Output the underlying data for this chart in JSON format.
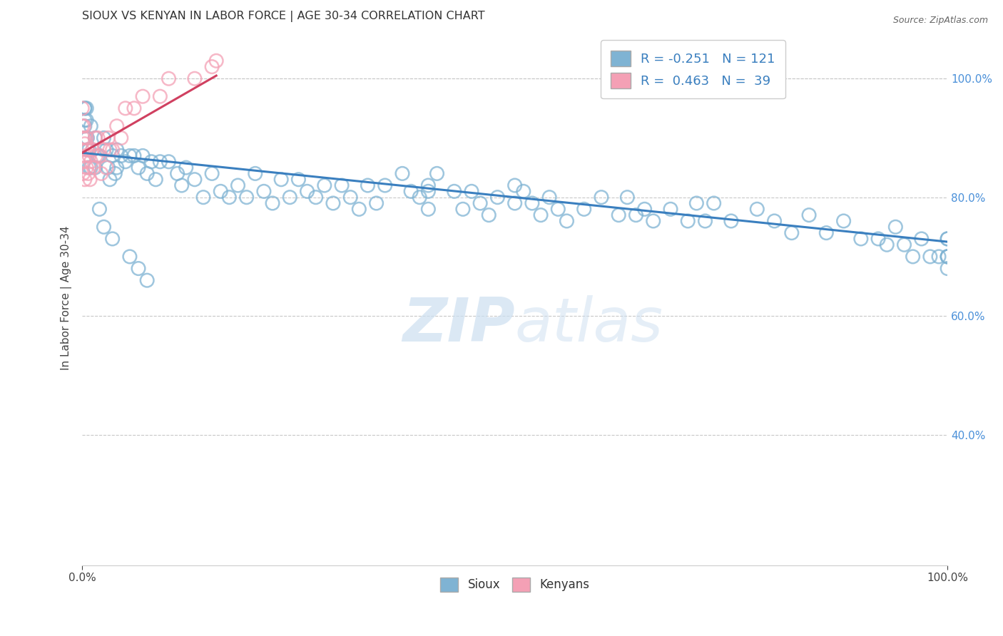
{
  "title": "SIOUX VS KENYAN IN LABOR FORCE | AGE 30-34 CORRELATION CHART",
  "source_text": "Source: ZipAtlas.com",
  "ylabel": "In Labor Force | Age 30-34",
  "xlim": [
    0.0,
    1.0
  ],
  "ylim": [
    0.18,
    1.08
  ],
  "x_ticks": [
    0.0,
    1.0
  ],
  "x_tick_labels": [
    "0.0%",
    "100.0%"
  ],
  "y_ticks": [
    0.4,
    0.6,
    0.8,
    1.0
  ],
  "y_tick_labels": [
    "40.0%",
    "60.0%",
    "80.0%",
    "100.0%"
  ],
  "blue_color": "#7fb3d3",
  "blue_edge_color": "#5a9fc0",
  "pink_color": "#f4a0b5",
  "pink_edge_color": "#e07090",
  "blue_line_color": "#3a7fbf",
  "pink_line_color": "#d04060",
  "grid_color": "#c8c8c8",
  "bg_color": "#ffffff",
  "tick_color": "#4a90d9",
  "watermark_color": "#ccdff0",
  "blue_trend_x": [
    0.0,
    1.0
  ],
  "blue_trend_y": [
    0.875,
    0.725
  ],
  "pink_trend_x": [
    0.0,
    0.155
  ],
  "pink_trend_y": [
    0.875,
    1.005
  ],
  "sioux_x": [
    0.005,
    0.005,
    0.005,
    0.008,
    0.01,
    0.01,
    0.012,
    0.015,
    0.015,
    0.018,
    0.02,
    0.025,
    0.028,
    0.03,
    0.032,
    0.035,
    0.038,
    0.04,
    0.04,
    0.045,
    0.05,
    0.055,
    0.06,
    0.065,
    0.07,
    0.075,
    0.08,
    0.085,
    0.09,
    0.1,
    0.11,
    0.115,
    0.12,
    0.13,
    0.14,
    0.15,
    0.16,
    0.17,
    0.18,
    0.19,
    0.2,
    0.21,
    0.22,
    0.23,
    0.24,
    0.25,
    0.26,
    0.27,
    0.28,
    0.29,
    0.3,
    0.31,
    0.32,
    0.33,
    0.34,
    0.35,
    0.37,
    0.38,
    0.39,
    0.4,
    0.4,
    0.4,
    0.41,
    0.43,
    0.44,
    0.45,
    0.46,
    0.47,
    0.48,
    0.5,
    0.5,
    0.51,
    0.52,
    0.53,
    0.54,
    0.55,
    0.56,
    0.58,
    0.6,
    0.62,
    0.63,
    0.64,
    0.65,
    0.66,
    0.68,
    0.7,
    0.71,
    0.72,
    0.73,
    0.75,
    0.78,
    0.8,
    0.82,
    0.84,
    0.86,
    0.88,
    0.9,
    0.92,
    0.93,
    0.94,
    0.95,
    0.96,
    0.97,
    0.98,
    0.99,
    1.0,
    1.0,
    1.0,
    1.0,
    1.0,
    1.0,
    0.003,
    0.003,
    0.003,
    0.003,
    0.003,
    0.006,
    0.006,
    0.008,
    0.02,
    0.025,
    0.035,
    0.055,
    0.065,
    0.075
  ],
  "sioux_y": [
    0.9,
    0.93,
    0.95,
    0.88,
    0.85,
    0.92,
    0.88,
    0.85,
    0.9,
    0.87,
    0.87,
    0.9,
    0.88,
    0.85,
    0.83,
    0.87,
    0.84,
    0.88,
    0.85,
    0.87,
    0.86,
    0.87,
    0.87,
    0.85,
    0.87,
    0.84,
    0.86,
    0.83,
    0.86,
    0.86,
    0.84,
    0.82,
    0.85,
    0.83,
    0.8,
    0.84,
    0.81,
    0.8,
    0.82,
    0.8,
    0.84,
    0.81,
    0.79,
    0.83,
    0.8,
    0.83,
    0.81,
    0.8,
    0.82,
    0.79,
    0.82,
    0.8,
    0.78,
    0.82,
    0.79,
    0.82,
    0.84,
    0.81,
    0.8,
    0.82,
    0.78,
    0.81,
    0.84,
    0.81,
    0.78,
    0.81,
    0.79,
    0.77,
    0.8,
    0.82,
    0.79,
    0.81,
    0.79,
    0.77,
    0.8,
    0.78,
    0.76,
    0.78,
    0.8,
    0.77,
    0.8,
    0.77,
    0.78,
    0.76,
    0.78,
    0.76,
    0.79,
    0.76,
    0.79,
    0.76,
    0.78,
    0.76,
    0.74,
    0.77,
    0.74,
    0.76,
    0.73,
    0.73,
    0.72,
    0.75,
    0.72,
    0.7,
    0.73,
    0.7,
    0.7,
    0.73,
    0.73,
    0.7,
    0.7,
    0.68,
    0.7,
    0.93,
    0.95,
    0.92,
    0.9,
    0.95,
    0.88,
    0.9,
    0.85,
    0.78,
    0.75,
    0.73,
    0.7,
    0.68,
    0.66
  ],
  "kenyan_x": [
    0.0,
    0.0,
    0.0,
    0.001,
    0.001,
    0.002,
    0.002,
    0.003,
    0.003,
    0.004,
    0.005,
    0.005,
    0.006,
    0.007,
    0.008,
    0.009,
    0.01,
    0.012,
    0.013,
    0.015,
    0.016,
    0.018,
    0.02,
    0.022,
    0.025,
    0.028,
    0.03,
    0.032,
    0.035,
    0.04,
    0.045,
    0.05,
    0.06,
    0.07,
    0.09,
    0.1,
    0.13,
    0.15,
    0.155
  ],
  "kenyan_y": [
    0.88,
    0.92,
    0.95,
    0.84,
    0.9,
    0.86,
    0.92,
    0.83,
    0.89,
    0.87,
    0.9,
    0.85,
    0.88,
    0.84,
    0.87,
    0.83,
    0.86,
    0.88,
    0.85,
    0.9,
    0.87,
    0.9,
    0.87,
    0.84,
    0.88,
    0.85,
    0.9,
    0.88,
    0.88,
    0.92,
    0.9,
    0.95,
    0.95,
    0.97,
    0.97,
    1.0,
    1.0,
    1.02,
    1.03
  ]
}
